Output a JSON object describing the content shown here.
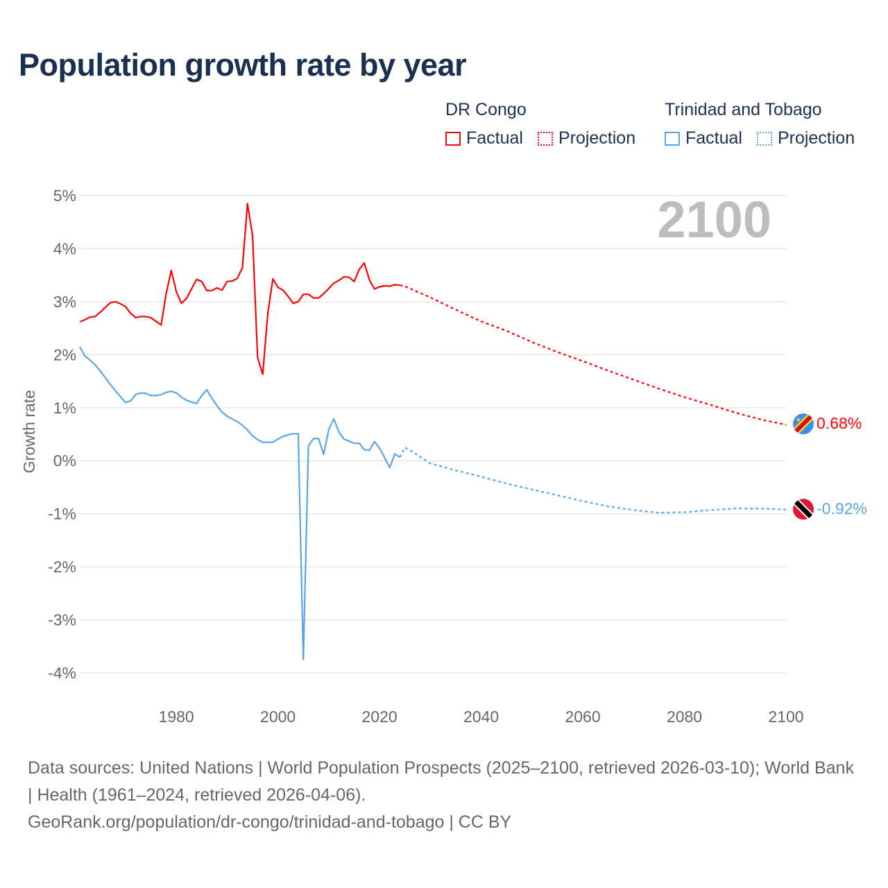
{
  "title": "Population growth rate by year",
  "legend": {
    "groups": [
      {
        "name": "DR Congo",
        "factual": "Factual",
        "projection": "Projection",
        "color": "#ff0000"
      },
      {
        "name": "Trinidad and Tobago",
        "factual": "Factual",
        "projection": "Projection",
        "color": "#5aa5e8"
      }
    ]
  },
  "year_label": "2100",
  "footer": {
    "line1": "Data sources: United Nations | World Population Prospects (2025–2100, retrieved 2026-03-10); World Bank | Health (1961–2024, retrieved 2026-04-06).",
    "line2": "GeoRank.org/population/dr-congo/trinidad-and-tobago | CC BY"
  },
  "chart_data": {
    "type": "line",
    "title": "Population growth rate by year",
    "xlabel": "",
    "ylabel": "Growth rate",
    "xlim": [
      1961,
      2100
    ],
    "ylim": [
      -4,
      5
    ],
    "xticks": [
      "1980",
      "2000",
      "2020",
      "2040",
      "2060",
      "2080",
      "2100"
    ],
    "xtick_values": [
      1980,
      2000,
      2020,
      2040,
      2060,
      2080,
      2100
    ],
    "yticks": [
      "5%",
      "4%",
      "3%",
      "2%",
      "1%",
      "0%",
      "-1%",
      "-2%",
      "-3%",
      "-4%"
    ],
    "ytick_values": [
      5,
      4,
      3,
      2,
      1,
      0,
      -1,
      -2,
      -3,
      -4
    ],
    "grid": true,
    "series": [
      {
        "name": "DR Congo",
        "color": "#ff0000",
        "end_label": "0.68%",
        "factual": {
          "x": [
            1961,
            1962,
            1963,
            1964,
            1965,
            1966,
            1967,
            1968,
            1969,
            1970,
            1971,
            1972,
            1973,
            1974,
            1975,
            1976,
            1977,
            1978,
            1979,
            1980,
            1981,
            1982,
            1983,
            1984,
            1985,
            1986,
            1987,
            1988,
            1989,
            1990,
            1991,
            1992,
            1993,
            1994,
            1995,
            1996,
            1997,
            1998,
            1999,
            2000,
            2001,
            2002,
            2003,
            2004,
            2005,
            2006,
            2007,
            2008,
            2009,
            2010,
            2011,
            2012,
            2013,
            2014,
            2015,
            2016,
            2017,
            2018,
            2019,
            2020,
            2021,
            2022,
            2023,
            2024
          ],
          "y": [
            2.62,
            2.66,
            2.71,
            2.72,
            2.8,
            2.89,
            2.98,
            3.0,
            2.96,
            2.91,
            2.78,
            2.7,
            2.72,
            2.72,
            2.7,
            2.63,
            2.56,
            3.15,
            3.59,
            3.19,
            2.97,
            3.06,
            3.24,
            3.42,
            3.38,
            3.21,
            3.21,
            3.26,
            3.22,
            3.38,
            3.39,
            3.44,
            3.64,
            4.85,
            4.25,
            1.95,
            1.63,
            2.78,
            3.43,
            3.27,
            3.22,
            3.1,
            2.97,
            3.0,
            3.14,
            3.14,
            3.07,
            3.07,
            3.15,
            3.25,
            3.35,
            3.4,
            3.47,
            3.46,
            3.38,
            3.61,
            3.73,
            3.41,
            3.24,
            3.28,
            3.3,
            3.29,
            3.32,
            3.31
          ]
        },
        "projection": {
          "x": [
            2024,
            2025,
            2030,
            2035,
            2040,
            2045,
            2050,
            2055,
            2060,
            2065,
            2070,
            2075,
            2080,
            2085,
            2090,
            2095,
            2100
          ],
          "y": [
            3.31,
            3.29,
            3.08,
            2.85,
            2.63,
            2.45,
            2.24,
            2.05,
            1.88,
            1.7,
            1.53,
            1.36,
            1.2,
            1.06,
            0.91,
            0.78,
            0.68
          ]
        }
      },
      {
        "name": "Trinidad and Tobago",
        "color": "#5aa5e8",
        "end_label": "-0.92%",
        "factual": {
          "x": [
            1961,
            1962,
            1963,
            1964,
            1965,
            1966,
            1967,
            1968,
            1969,
            1970,
            1971,
            1972,
            1973,
            1974,
            1975,
            1976,
            1977,
            1978,
            1979,
            1980,
            1981,
            1982,
            1983,
            1984,
            1985,
            1986,
            1987,
            1988,
            1989,
            1990,
            1991,
            1992,
            1993,
            1994,
            1995,
            1996,
            1997,
            1998,
            1999,
            2000,
            2001,
            2002,
            2003,
            2004,
            2005,
            2006,
            2007,
            2008,
            2009,
            2010,
            2011,
            2012,
            2013,
            2014,
            2015,
            2016,
            2017,
            2018,
            2019,
            2020,
            2021,
            2022,
            2023,
            2024
          ],
          "y": [
            2.15,
            1.98,
            1.9,
            1.81,
            1.7,
            1.57,
            1.44,
            1.32,
            1.21,
            1.1,
            1.13,
            1.25,
            1.28,
            1.27,
            1.23,
            1.23,
            1.25,
            1.29,
            1.31,
            1.28,
            1.2,
            1.14,
            1.11,
            1.08,
            1.23,
            1.34,
            1.18,
            1.04,
            0.92,
            0.84,
            0.79,
            0.74,
            0.67,
            0.58,
            0.47,
            0.4,
            0.35,
            0.35,
            0.35,
            0.41,
            0.46,
            0.49,
            0.51,
            0.51,
            -3.75,
            0.28,
            0.42,
            0.42,
            0.12,
            0.59,
            0.79,
            0.54,
            0.41,
            0.37,
            0.33,
            0.33,
            0.21,
            0.2,
            0.36,
            0.24,
            0.06,
            -0.13,
            0.13,
            0.07
          ]
        },
        "projection": {
          "x": [
            2024,
            2025,
            2026,
            2030,
            2035,
            2040,
            2045,
            2050,
            2055,
            2060,
            2065,
            2070,
            2075,
            2080,
            2085,
            2090,
            2095,
            2100
          ],
          "y": [
            0.07,
            0.25,
            0.2,
            -0.05,
            -0.18,
            -0.3,
            -0.43,
            -0.54,
            -0.65,
            -0.76,
            -0.86,
            -0.93,
            -0.98,
            -0.97,
            -0.93,
            -0.9,
            -0.9,
            -0.92
          ]
        }
      }
    ]
  }
}
